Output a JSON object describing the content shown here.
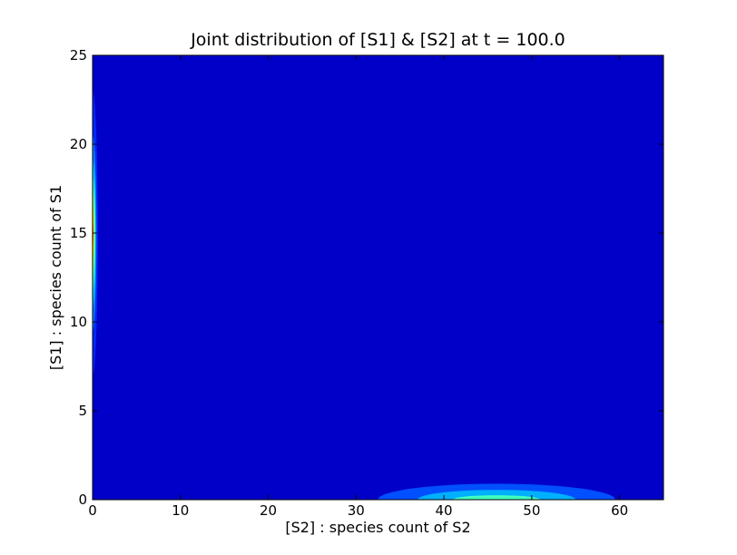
{
  "chart_data": {
    "type": "heatmap",
    "subtype": "filled-contour",
    "title": "Joint distribution of [S1] & [S2] at t = 100.0",
    "xlabel": "[S2] : species count of S2",
    "ylabel": "[S1] : species count of S1",
    "xlim": [
      0,
      65
    ],
    "ylim": [
      0,
      25
    ],
    "xticks": [
      0,
      10,
      20,
      30,
      40,
      50,
      60
    ],
    "yticks": [
      0,
      5,
      10,
      15,
      20,
      25
    ],
    "grid": false,
    "legend": "none",
    "colormap": "jet",
    "background_color": "#0000c8",
    "regions": [
      {
        "name": "S2-near-zero peak",
        "center": [
          0,
          15
        ],
        "levels": [
          {
            "x": [
              0,
              0.6
            ],
            "y": [
              7.8,
              23.8
            ],
            "color": "#0028ff"
          },
          {
            "x": [
              0,
              0.45
            ],
            "y": [
              10.0,
              21.0
            ],
            "color": "#0080ff"
          },
          {
            "x": [
              0,
              0.35
            ],
            "y": [
              11.3,
              19.6
            ],
            "color": "#00d4ff"
          },
          {
            "x": [
              0,
              0.28
            ],
            "y": [
              12.2,
              18.6
            ],
            "color": "#4dffaa"
          },
          {
            "x": [
              0,
              0.22
            ],
            "y": [
              13.0,
              17.6
            ],
            "color": "#aaff4d"
          },
          {
            "x": [
              0,
              0.16
            ],
            "y": [
              13.8,
              16.7
            ],
            "color": "#ffe000"
          },
          {
            "x": [
              0,
              0.1
            ],
            "y": [
              14.5,
              15.8
            ],
            "color": "#ff7000"
          }
        ]
      },
      {
        "name": "S1-near-zero peak",
        "center": [
          46,
          0
        ],
        "levels": [
          {
            "x": [
              33,
              60
            ],
            "y": [
              0,
              0.9
            ],
            "color": "#0050ff"
          },
          {
            "x": [
              38,
              56
            ],
            "y": [
              0,
              0.55
            ],
            "color": "#00b0ff"
          },
          {
            "x": [
              42,
              52
            ],
            "y": [
              0,
              0.25
            ],
            "color": "#40ffbf"
          }
        ]
      }
    ]
  }
}
